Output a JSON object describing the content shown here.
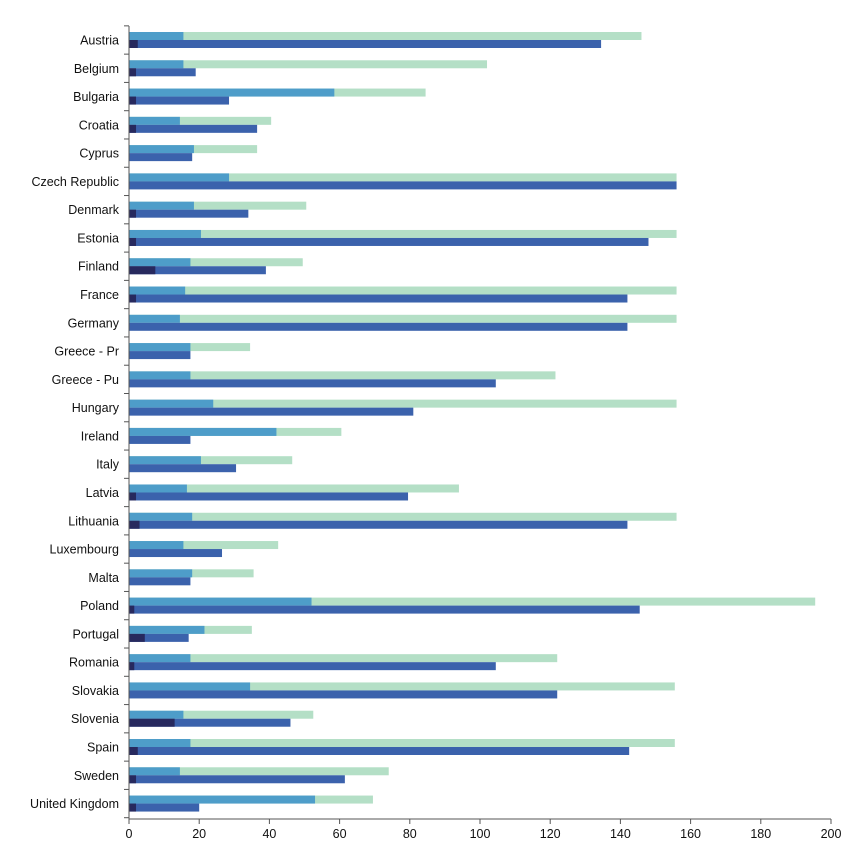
{
  "chart_data": {
    "type": "bar",
    "orientation": "horizontal",
    "title": "",
    "xlabel": "",
    "ylabel": "",
    "xlim": [
      0,
      200
    ],
    "x_ticks": [
      "0",
      "20",
      "40",
      "60",
      "80",
      "100",
      "120",
      "140",
      "160",
      "180",
      "200"
    ],
    "grid": false,
    "legend": "none",
    "categories": [
      "Austria",
      "Belgium",
      "Bulgaria",
      "Croatia",
      "Cyprus",
      "Czech Republic",
      "Denmark",
      "Estonia",
      "Finland",
      "France",
      "Germany",
      "Greece - Pr",
      "Greece - Pu",
      "Hungary",
      "Ireland",
      "Italy",
      "Latvia",
      "Lithuania",
      "Luxembourg",
      "Malta",
      "Poland",
      "Portugal",
      "Romania",
      "Slovakia",
      "Slovenia",
      "Spain",
      "Sweden",
      "United Kingdom"
    ],
    "series": [
      {
        "color": "#b4dfc6",
        "values": [
          146,
          102,
          84.5,
          40.5,
          36.5,
          156,
          50.5,
          156,
          49.5,
          156,
          156,
          34.5,
          121.5,
          156,
          60.5,
          46.5,
          94,
          156,
          42.5,
          35.5,
          195.5,
          35,
          122,
          155.5,
          52.5,
          155.5,
          74,
          69.5
        ]
      },
      {
        "color": "#4e9dc9",
        "values": [
          15.5,
          15.5,
          58.5,
          14.5,
          18.5,
          28.5,
          18.5,
          20.5,
          17.5,
          16,
          14.5,
          17.5,
          17.5,
          24,
          42,
          20.5,
          16.5,
          18,
          15.5,
          18,
          52,
          21.5,
          17.5,
          34.5,
          15.5,
          17.5,
          14.5,
          53
        ]
      },
      {
        "color": "#3b62ac",
        "values": [
          134.5,
          19,
          28.5,
          36.5,
          18,
          156,
          34,
          148,
          39,
          142,
          142,
          17.5,
          104.5,
          81,
          17.5,
          30.5,
          79.5,
          142,
          26.5,
          17.5,
          145.5,
          17,
          104.5,
          122,
          46,
          142.5,
          61.5,
          20
        ]
      },
      {
        "color": "#27295e",
        "values": [
          2.5,
          2,
          2,
          2,
          0,
          0,
          2,
          2,
          7.5,
          2,
          0,
          0,
          0,
          0,
          0,
          0,
          2,
          3,
          0,
          0,
          1.5,
          4.5,
          1.5,
          0,
          13,
          2.5,
          2,
          2
        ]
      }
    ]
  }
}
